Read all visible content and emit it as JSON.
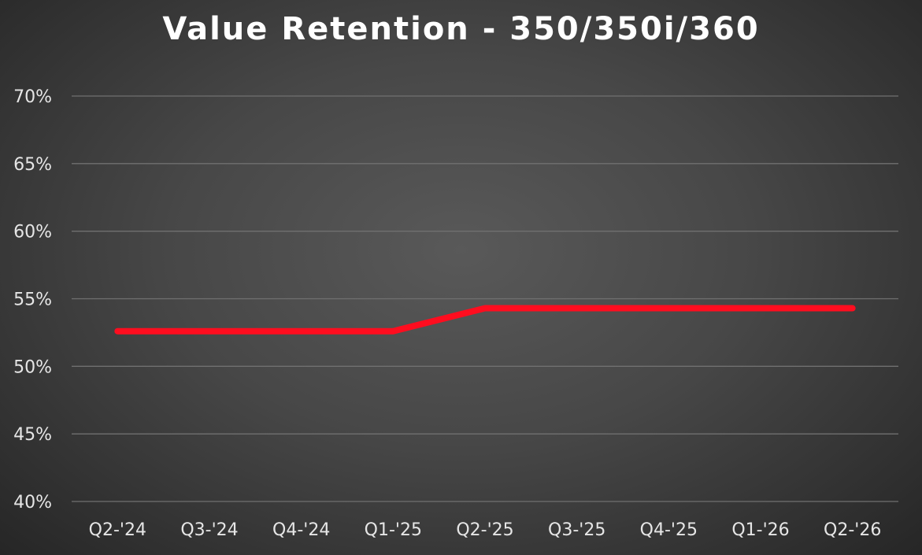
{
  "chart_data": {
    "type": "line",
    "title": "Value Retention - 350/350i/360",
    "xlabel": "",
    "ylabel": "",
    "categories": [
      "Q2-'24",
      "Q3-'24",
      "Q4-'24",
      "Q1-'25",
      "Q2-'25",
      "Q3-'25",
      "Q4-'25",
      "Q1-'26",
      "Q2-'26"
    ],
    "series": [
      {
        "values": [
          52.6,
          52.6,
          52.6,
          52.6,
          54.3,
          54.3,
          54.3,
          54.3,
          54.3
        ],
        "color": "#ff0d1f"
      }
    ],
    "ylim": [
      40,
      70
    ],
    "yticks": [
      {
        "value": 70,
        "label": "70%"
      },
      {
        "value": 65,
        "label": "65%"
      },
      {
        "value": 60,
        "label": "60%"
      },
      {
        "value": 55,
        "label": "55%"
      },
      {
        "value": 50,
        "label": "50%"
      },
      {
        "value": 45,
        "label": "45%"
      },
      {
        "value": 40,
        "label": "40%"
      }
    ],
    "grid": true,
    "legend": "none"
  }
}
